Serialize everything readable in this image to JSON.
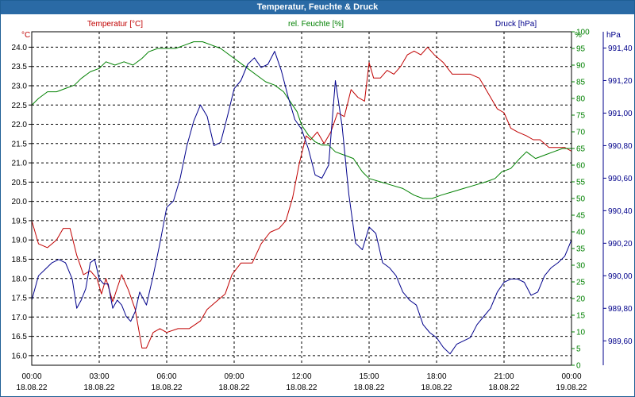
{
  "window": {
    "title": "Temperatur, Feuchte & Druck"
  },
  "colors": {
    "temperature": "#c00000",
    "humidity": "#008000",
    "pressure": "#00008b",
    "grid": "#000000",
    "axis": "#000000",
    "background": "#ffffff",
    "title_bar": "#2a6aa5"
  },
  "chart_data": {
    "type": "line",
    "title": "Temperatur, Feuchte & Druck",
    "x_ticks": [
      {
        "time": "00:00",
        "date": "18.08.22"
      },
      {
        "time": "03:00",
        "date": "18.08.22"
      },
      {
        "time": "06:00",
        "date": "18.08.22"
      },
      {
        "time": "09:00",
        "date": "18.08.22"
      },
      {
        "time": "12:00",
        "date": "18.08.22"
      },
      {
        "time": "15:00",
        "date": "18.08.22"
      },
      {
        "time": "18:00",
        "date": "18.08.22"
      },
      {
        "time": "21:00",
        "date": "18.08.22"
      },
      {
        "time": "00:00",
        "date": "19.08.22"
      }
    ],
    "xlim_hours": [
      0,
      24
    ],
    "axes": {
      "temperature": {
        "label": "Temperatur [°C]",
        "unit": "°C",
        "ylim": [
          15.75,
          24.4
        ],
        "ticks": [
          "16.0",
          "16.5",
          "17.0",
          "17.5",
          "18.0",
          "18.5",
          "19.0",
          "19.5",
          "20.0",
          "20.5",
          "21.0",
          "21.5",
          "22.0",
          "22.5",
          "23.0",
          "23.5",
          "24.0"
        ]
      },
      "humidity": {
        "label": "rel. Feuchte [%]",
        "unit": "%",
        "ylim": [
          0,
          100
        ],
        "ticks": [
          "0",
          "5",
          "10",
          "15",
          "20",
          "25",
          "30",
          "35",
          "40",
          "45",
          "50",
          "55",
          "60",
          "65",
          "70",
          "75",
          "80",
          "85",
          "90",
          "95",
          "100"
        ]
      },
      "pressure": {
        "label": "Druck [hPa]",
        "unit": "hPa",
        "ylim": [
          989.45,
          991.5
        ],
        "ticks": [
          "989,60",
          "989,80",
          "990,00",
          "990,20",
          "990,40",
          "990,60",
          "990,80",
          "991,00",
          "991,20",
          "991,40"
        ]
      }
    },
    "series": [
      {
        "name": "Temperatur [°C]",
        "axis": "temperature",
        "color": "#c00000",
        "points": [
          [
            0,
            19.5
          ],
          [
            0.3,
            18.9
          ],
          [
            0.7,
            18.8
          ],
          [
            1.1,
            19.0
          ],
          [
            1.4,
            19.3
          ],
          [
            1.7,
            19.3
          ],
          [
            2.0,
            18.6
          ],
          [
            2.3,
            18.1
          ],
          [
            2.6,
            18.2
          ],
          [
            2.9,
            18.0
          ],
          [
            3.1,
            17.6
          ],
          [
            3.3,
            18.0
          ],
          [
            3.6,
            17.4
          ],
          [
            4.0,
            18.1
          ],
          [
            4.3,
            17.7
          ],
          [
            4.6,
            17.2
          ],
          [
            4.9,
            16.2
          ],
          [
            5.1,
            16.2
          ],
          [
            5.4,
            16.6
          ],
          [
            5.7,
            16.7
          ],
          [
            6.0,
            16.6
          ],
          [
            6.5,
            16.7
          ],
          [
            7.0,
            16.7
          ],
          [
            7.5,
            16.9
          ],
          [
            7.8,
            17.2
          ],
          [
            8.2,
            17.4
          ],
          [
            8.6,
            17.6
          ],
          [
            8.9,
            18.1
          ],
          [
            9.3,
            18.4
          ],
          [
            9.8,
            18.4
          ],
          [
            10.2,
            18.9
          ],
          [
            10.6,
            19.2
          ],
          [
            11.0,
            19.3
          ],
          [
            11.3,
            19.5
          ],
          [
            11.6,
            20.1
          ],
          [
            11.9,
            21.0
          ],
          [
            12.2,
            21.7
          ],
          [
            12.4,
            21.6
          ],
          [
            12.7,
            21.8
          ],
          [
            13.0,
            21.5
          ],
          [
            13.3,
            21.8
          ],
          [
            13.6,
            22.3
          ],
          [
            13.9,
            22.2
          ],
          [
            14.2,
            22.9
          ],
          [
            14.5,
            22.7
          ],
          [
            14.8,
            22.6
          ],
          [
            15.0,
            23.6
          ],
          [
            15.2,
            23.2
          ],
          [
            15.5,
            23.2
          ],
          [
            15.8,
            23.4
          ],
          [
            16.1,
            23.3
          ],
          [
            16.4,
            23.5
          ],
          [
            16.7,
            23.8
          ],
          [
            17.0,
            23.9
          ],
          [
            17.3,
            23.8
          ],
          [
            17.6,
            24.0
          ],
          [
            17.9,
            23.8
          ],
          [
            18.3,
            23.6
          ],
          [
            18.7,
            23.3
          ],
          [
            19.1,
            23.3
          ],
          [
            19.5,
            23.3
          ],
          [
            19.9,
            23.2
          ],
          [
            20.3,
            22.8
          ],
          [
            20.7,
            22.4
          ],
          [
            21.0,
            22.3
          ],
          [
            21.3,
            21.9
          ],
          [
            21.6,
            21.8
          ],
          [
            22.0,
            21.7
          ],
          [
            22.3,
            21.6
          ],
          [
            22.6,
            21.6
          ],
          [
            23.0,
            21.4
          ],
          [
            23.3,
            21.4
          ],
          [
            23.7,
            21.4
          ],
          [
            24.0,
            21.3
          ]
        ]
      },
      {
        "name": "rel. Feuchte [%]",
        "axis": "humidity",
        "color": "#008000",
        "points": [
          [
            0,
            78
          ],
          [
            0.3,
            80
          ],
          [
            0.7,
            82
          ],
          [
            1.1,
            82
          ],
          [
            1.5,
            83
          ],
          [
            1.9,
            84
          ],
          [
            2.2,
            86
          ],
          [
            2.6,
            88
          ],
          [
            3.0,
            89
          ],
          [
            3.3,
            91
          ],
          [
            3.7,
            90
          ],
          [
            4.1,
            91
          ],
          [
            4.5,
            90
          ],
          [
            4.9,
            92
          ],
          [
            5.2,
            94
          ],
          [
            5.6,
            95
          ],
          [
            6.0,
            95
          ],
          [
            6.4,
            95
          ],
          [
            6.8,
            96
          ],
          [
            7.2,
            97
          ],
          [
            7.6,
            97
          ],
          [
            8.0,
            96
          ],
          [
            8.4,
            95
          ],
          [
            8.8,
            93
          ],
          [
            9.2,
            91
          ],
          [
            9.6,
            89
          ],
          [
            10.0,
            87
          ],
          [
            10.4,
            85
          ],
          [
            10.8,
            84
          ],
          [
            11.2,
            82
          ],
          [
            11.5,
            79
          ],
          [
            11.8,
            76
          ],
          [
            12.0,
            72
          ],
          [
            12.3,
            69
          ],
          [
            12.6,
            67
          ],
          [
            12.9,
            66
          ],
          [
            13.2,
            66
          ],
          [
            13.5,
            64
          ],
          [
            13.9,
            63
          ],
          [
            14.3,
            62
          ],
          [
            14.7,
            58
          ],
          [
            15.0,
            56
          ],
          [
            15.5,
            55
          ],
          [
            16.0,
            54
          ],
          [
            16.5,
            53
          ],
          [
            17.0,
            51
          ],
          [
            17.4,
            50
          ],
          [
            17.8,
            50
          ],
          [
            18.2,
            51
          ],
          [
            18.7,
            52
          ],
          [
            19.2,
            53
          ],
          [
            19.7,
            54
          ],
          [
            20.2,
            55
          ],
          [
            20.6,
            56
          ],
          [
            20.9,
            58
          ],
          [
            21.3,
            59
          ],
          [
            21.7,
            62
          ],
          [
            22.0,
            64
          ],
          [
            22.4,
            62
          ],
          [
            22.8,
            63
          ],
          [
            23.2,
            64
          ],
          [
            23.6,
            65
          ],
          [
            24.0,
            65
          ]
        ]
      },
      {
        "name": "Druck [hPa]",
        "axis": "pressure",
        "color": "#00008b",
        "points": [
          [
            0,
            989.85
          ],
          [
            0.3,
            990.0
          ],
          [
            0.6,
            990.04
          ],
          [
            0.9,
            990.08
          ],
          [
            1.2,
            990.1
          ],
          [
            1.5,
            990.08
          ],
          [
            1.8,
            989.98
          ],
          [
            2.0,
            989.8
          ],
          [
            2.2,
            989.85
          ],
          [
            2.4,
            989.92
          ],
          [
            2.6,
            990.08
          ],
          [
            2.8,
            990.1
          ],
          [
            3.0,
            989.98
          ],
          [
            3.2,
            989.95
          ],
          [
            3.4,
            989.95
          ],
          [
            3.6,
            989.8
          ],
          [
            3.8,
            989.85
          ],
          [
            4.0,
            989.82
          ],
          [
            4.2,
            989.75
          ],
          [
            4.4,
            989.72
          ],
          [
            4.6,
            989.78
          ],
          [
            4.8,
            989.9
          ],
          [
            5.1,
            989.82
          ],
          [
            5.4,
            990.0
          ],
          [
            5.7,
            990.2
          ],
          [
            6.0,
            990.42
          ],
          [
            6.3,
            990.46
          ],
          [
            6.6,
            990.6
          ],
          [
            6.9,
            990.8
          ],
          [
            7.2,
            990.95
          ],
          [
            7.5,
            991.05
          ],
          [
            7.8,
            990.98
          ],
          [
            8.1,
            990.8
          ],
          [
            8.4,
            990.82
          ],
          [
            8.7,
            990.98
          ],
          [
            9.0,
            991.15
          ],
          [
            9.3,
            991.2
          ],
          [
            9.6,
            991.3
          ],
          [
            9.9,
            991.34
          ],
          [
            10.2,
            991.28
          ],
          [
            10.5,
            991.3
          ],
          [
            10.8,
            991.38
          ],
          [
            11.1,
            991.26
          ],
          [
            11.4,
            991.1
          ],
          [
            11.7,
            990.96
          ],
          [
            12.0,
            990.9
          ],
          [
            12.3,
            990.78
          ],
          [
            12.6,
            990.62
          ],
          [
            12.9,
            990.6
          ],
          [
            13.2,
            990.68
          ],
          [
            13.5,
            991.2
          ],
          [
            13.8,
            990.92
          ],
          [
            14.1,
            990.5
          ],
          [
            14.4,
            990.2
          ],
          [
            14.7,
            990.16
          ],
          [
            15.0,
            990.3
          ],
          [
            15.3,
            990.26
          ],
          [
            15.6,
            990.08
          ],
          [
            15.9,
            990.05
          ],
          [
            16.2,
            990.0
          ],
          [
            16.5,
            989.9
          ],
          [
            16.8,
            989.85
          ],
          [
            17.1,
            989.82
          ],
          [
            17.4,
            989.7
          ],
          [
            17.7,
            989.65
          ],
          [
            18.0,
            989.62
          ],
          [
            18.3,
            989.56
          ],
          [
            18.6,
            989.52
          ],
          [
            18.9,
            989.58
          ],
          [
            19.2,
            989.6
          ],
          [
            19.5,
            989.62
          ],
          [
            19.8,
            989.7
          ],
          [
            20.1,
            989.75
          ],
          [
            20.4,
            989.8
          ],
          [
            20.7,
            989.9
          ],
          [
            21.0,
            989.96
          ],
          [
            21.3,
            989.98
          ],
          [
            21.6,
            989.98
          ],
          [
            21.9,
            989.96
          ],
          [
            22.2,
            989.88
          ],
          [
            22.5,
            989.9
          ],
          [
            22.8,
            990.0
          ],
          [
            23.1,
            990.05
          ],
          [
            23.4,
            990.08
          ],
          [
            23.7,
            990.12
          ],
          [
            24.0,
            990.22
          ]
        ]
      }
    ]
  }
}
